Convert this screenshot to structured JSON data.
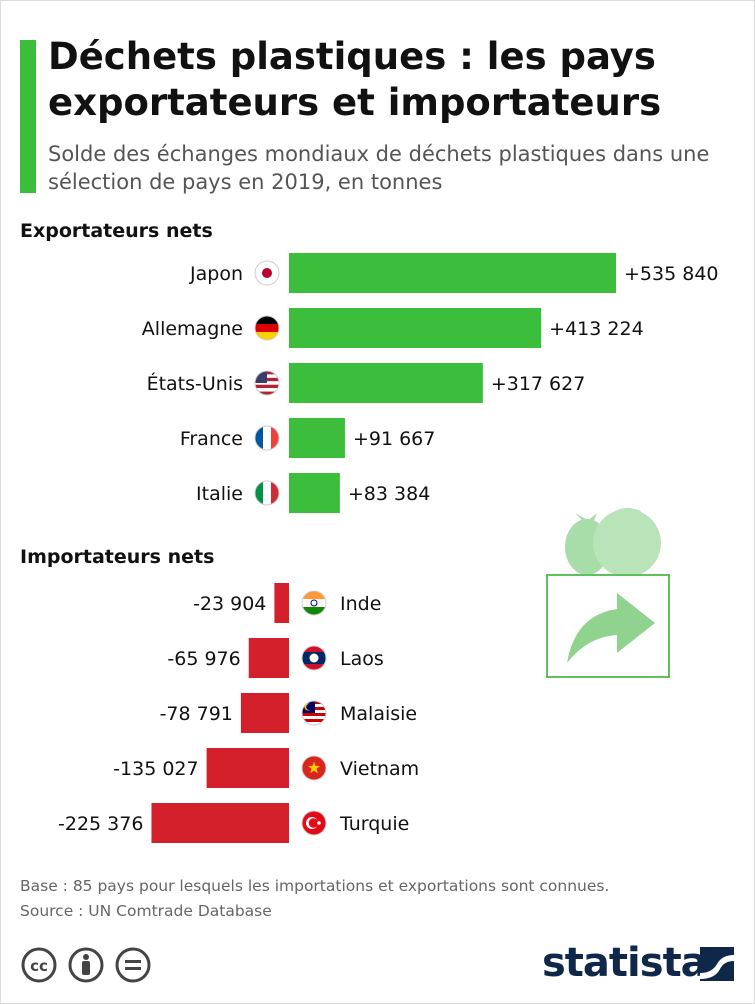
{
  "header": {
    "title": "Déchets plastiques : les pays exportateurs et importateurs",
    "subtitle": "Solde des échanges mondiaux de déchets plastiques dans une sélection de pays en 2019, en tonnes"
  },
  "chart_data": {
    "type": "bar",
    "orientation": "horizontal",
    "title": "Déchets plastiques : les pays exportateurs et importateurs",
    "subtitle": "Solde des échanges mondiaux de déchets plastiques dans une sélection de pays en 2019, en tonnes",
    "unit": "tonnes",
    "groups": [
      {
        "name": "Exportateurs nets",
        "color": "#3cbe3c",
        "categories": [
          "Japon",
          "Allemagne",
          "États-Unis",
          "France",
          "Italie"
        ],
        "values": [
          535840,
          413224,
          317627,
          91667,
          83384
        ],
        "labels": [
          "+535 840",
          "+413 224",
          "+317 627",
          "+91 667",
          "+83 384"
        ],
        "flags": [
          "japan-flag",
          "germany-flag",
          "usa-flag",
          "france-flag",
          "italy-flag"
        ]
      },
      {
        "name": "Importateurs nets",
        "color": "#d4202a",
        "categories": [
          "Inde",
          "Laos",
          "Malaisie",
          "Vietnam",
          "Turquie"
        ],
        "values": [
          -23904,
          -65976,
          -78791,
          -135027,
          -225376
        ],
        "labels": [
          "-23 904",
          "-65 976",
          "-78 791",
          "-135 027",
          "-225 376"
        ],
        "flags": [
          "india-flag",
          "laos-flag",
          "malaysia-flag",
          "vietnam-flag",
          "turkey-flag"
        ]
      }
    ]
  },
  "footer": {
    "base": "Base : 85 pays pour lesquels les importations et exportations sont connues.",
    "source": "Source : UN Comtrade Database"
  },
  "brand": {
    "name": "statista"
  },
  "icons": [
    "cc-icon",
    "by-icon",
    "nd-icon",
    "statista-logo-icon",
    "plastic-waste-box-icon"
  ],
  "colors": {
    "accent": "#3cbe3c",
    "export": "#3cbe3c",
    "import": "#d4202a",
    "brand": "#0f2849"
  }
}
